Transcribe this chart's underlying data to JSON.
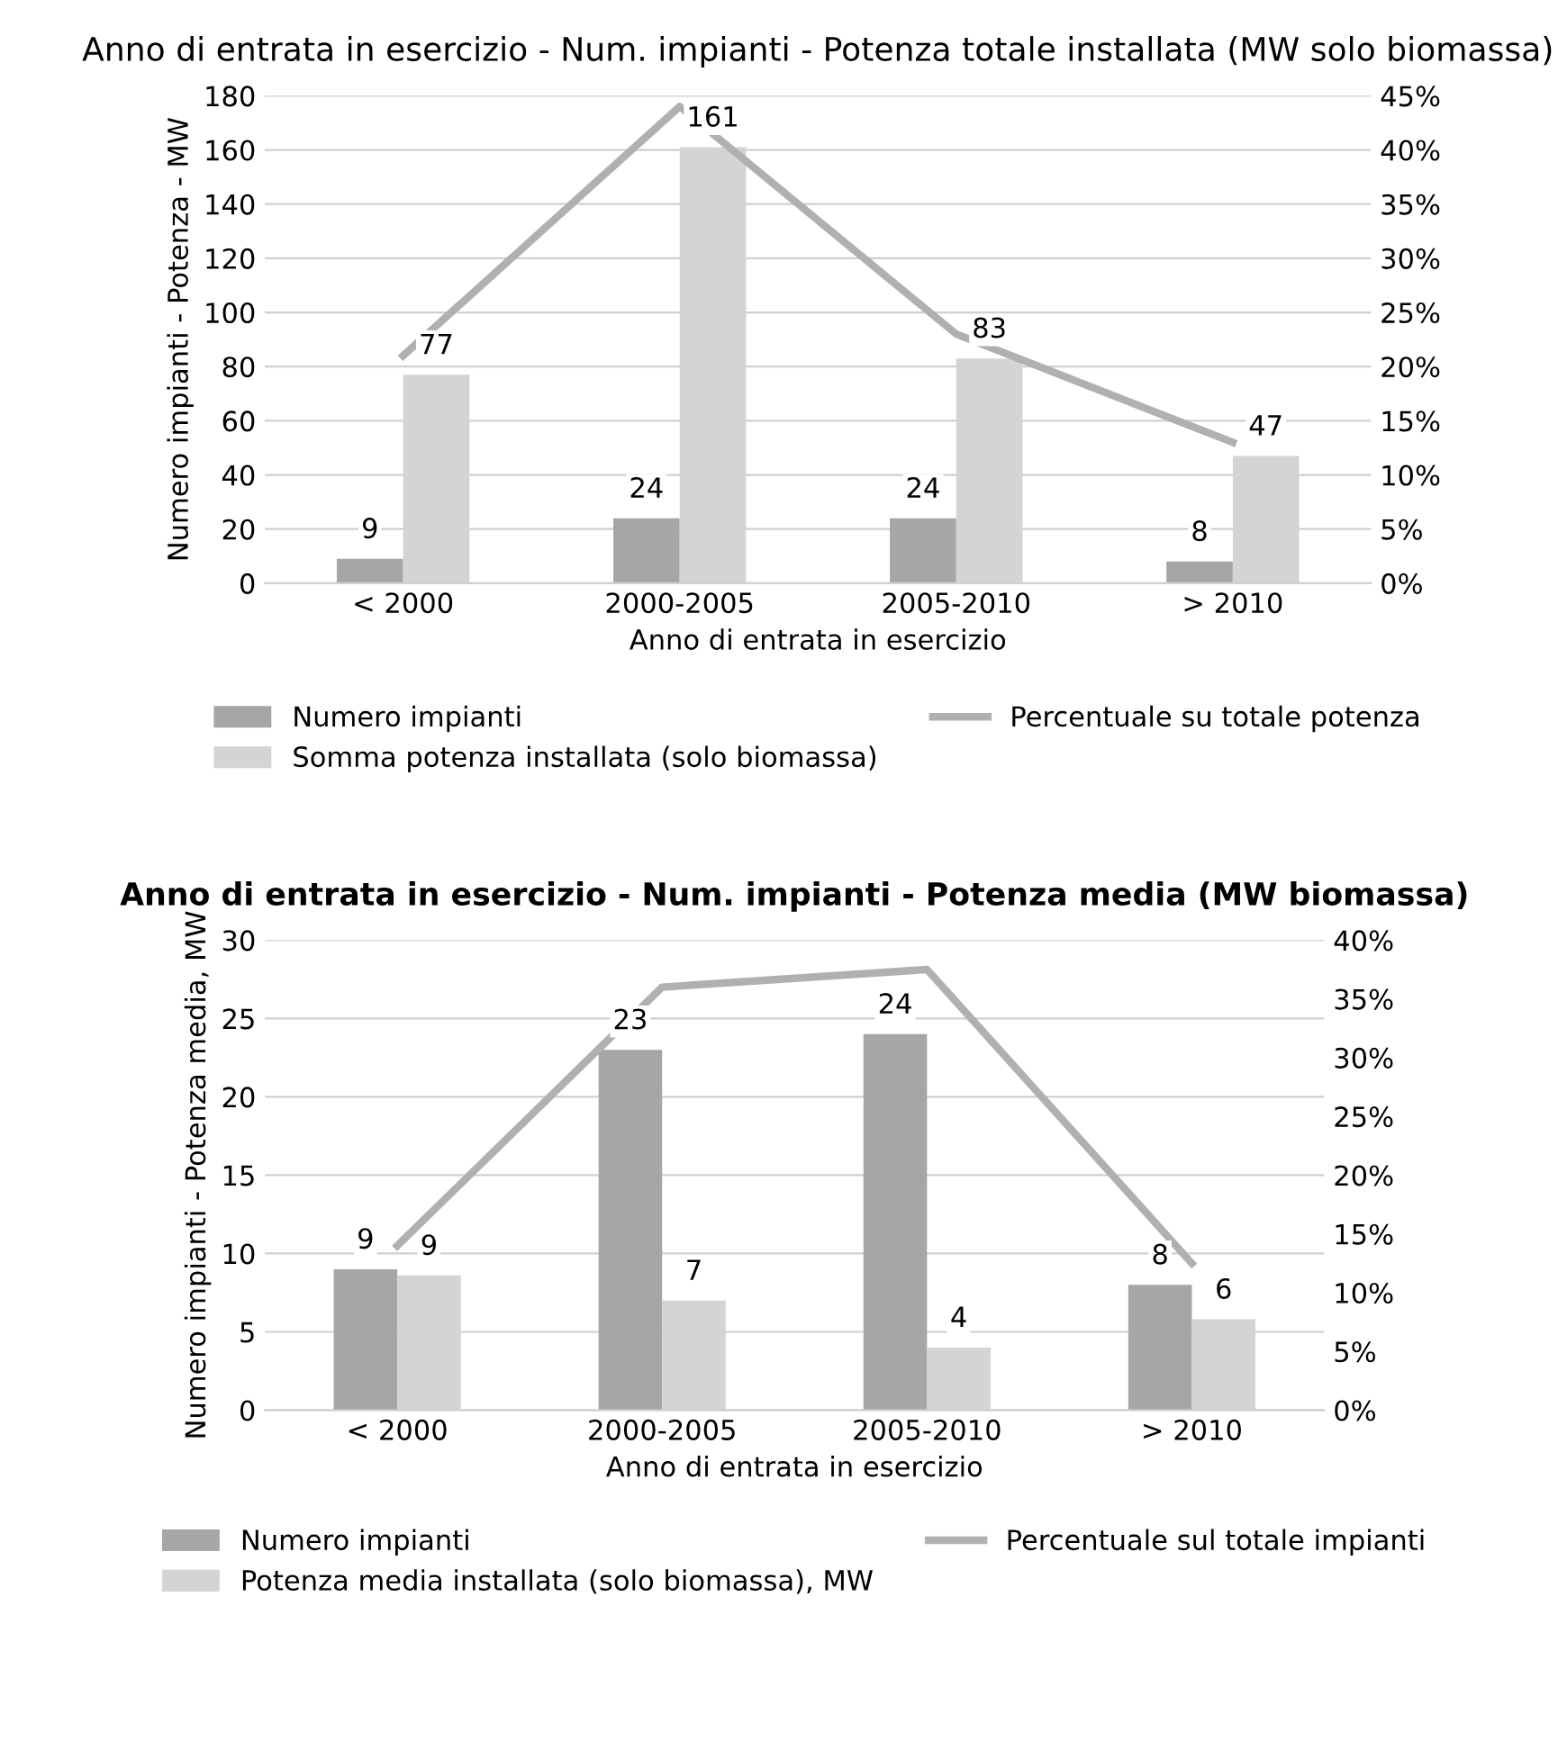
{
  "chart_data": [
    {
      "type": "bar",
      "title": "Anno di entrata in esercizio - Num. impianti - Potenza totale installata (MW solo biomassa)",
      "xlabel": "Anno di entrata in esercizio",
      "ylabel": "Numero impianti - Potenza - MW",
      "categories": [
        "< 2000",
        "2000-2005",
        "2005-2010",
        "> 2010"
      ],
      "series": [
        {
          "name": "Numero impianti",
          "color": "#a6a6a6",
          "values": [
            9,
            24,
            24,
            8
          ],
          "value_labels": [
            "9",
            "24",
            "24",
            "8"
          ]
        },
        {
          "name": "Somma potenza installata (solo biomassa)",
          "color": "#d4d4d4",
          "values": [
            77,
            161,
            83,
            47
          ],
          "value_labels": [
            "77",
            "161",
            "83",
            "47"
          ]
        },
        {
          "name": "Percentuale su totale potenza",
          "type": "line",
          "axis": "y2",
          "color": "#b0b0b0",
          "values": [
            21,
            44,
            23,
            13
          ]
        }
      ],
      "ylim": [
        0,
        180
      ],
      "yticks": [
        0,
        20,
        40,
        60,
        80,
        100,
        120,
        140,
        160,
        180
      ],
      "y2lim": [
        0,
        45
      ],
      "y2ticks": [
        {
          "value": 0,
          "label": "0%"
        },
        {
          "value": 5,
          "label": "5%"
        },
        {
          "value": 10,
          "label": "10%"
        },
        {
          "value": 15,
          "label": "15%"
        },
        {
          "value": 20,
          "label": "20%"
        },
        {
          "value": 25,
          "label": "25%"
        },
        {
          "value": 30,
          "label": "30%"
        },
        {
          "value": 35,
          "label": "35%"
        },
        {
          "value": 40,
          "label": "40%"
        },
        {
          "value": 45,
          "label": "45%"
        }
      ],
      "grid": "y",
      "legend": "bottom",
      "marker": "none",
      "line_style": "solid"
    },
    {
      "type": "bar",
      "title": "Anno di entrata in esercizio - Num. impianti - Potenza media (MW biomassa)",
      "xlabel": "Anno di entrata in esercizio",
      "ylabel": "Numero impianti - Potenza media, MW",
      "categories": [
        "< 2000",
        "2000-2005",
        "2005-2010",
        "> 2010"
      ],
      "series": [
        {
          "name": "Numero impianti",
          "color": "#a6a6a6",
          "values": [
            9,
            23,
            24,
            8
          ],
          "value_labels": [
            "9",
            "23",
            "24",
            "8"
          ]
        },
        {
          "name": "Potenza media installata (solo biomassa), MW",
          "color": "#d4d4d4",
          "values": [
            8.6,
            7,
            4,
            5.8
          ],
          "value_labels": [
            "9",
            "7",
            "4",
            "6"
          ]
        },
        {
          "name": "Percentuale sul totale impianti",
          "type": "line",
          "axis": "y2",
          "color": "#b0b0b0",
          "values": [
            14,
            36,
            37.5,
            12.5
          ]
        }
      ],
      "ylim": [
        0,
        30
      ],
      "yticks": [
        0,
        5,
        10,
        15,
        20,
        25,
        30
      ],
      "y2lim": [
        0,
        40
      ],
      "y2ticks": [
        {
          "value": 0,
          "label": "0%"
        },
        {
          "value": 5,
          "label": "5%"
        },
        {
          "value": 10,
          "label": "10%"
        },
        {
          "value": 15,
          "label": "15%"
        },
        {
          "value": 20,
          "label": "20%"
        },
        {
          "value": 25,
          "label": "25%"
        },
        {
          "value": 30,
          "label": "30%"
        },
        {
          "value": 35,
          "label": "35%"
        },
        {
          "value": 40,
          "label": "40%"
        }
      ],
      "grid": "y",
      "legend": "bottom",
      "marker": "none",
      "line_style": "solid"
    }
  ]
}
